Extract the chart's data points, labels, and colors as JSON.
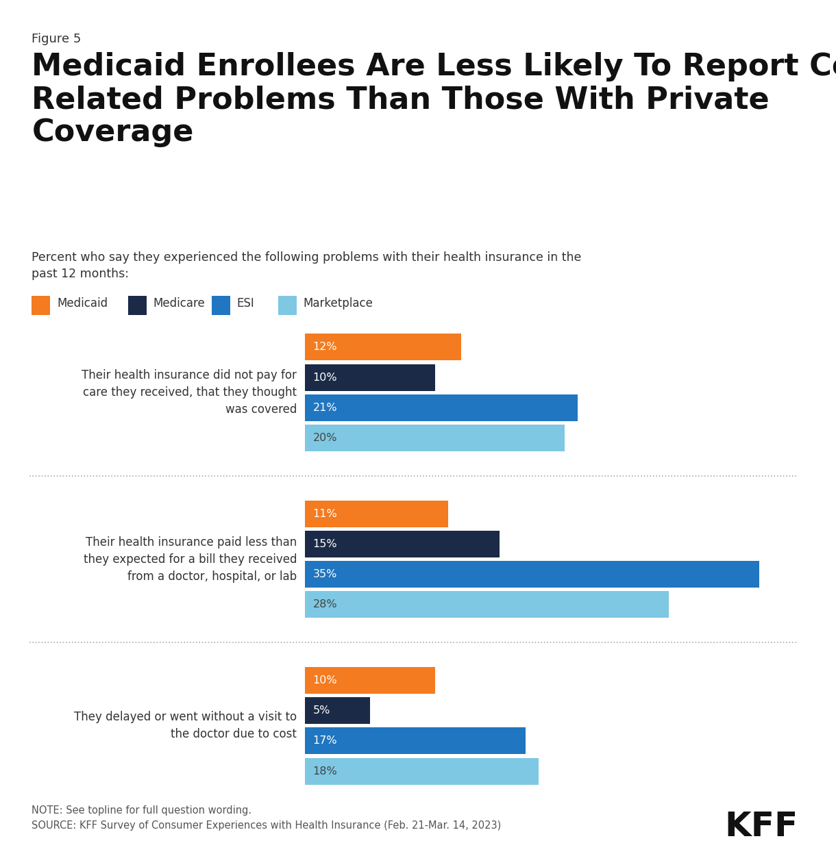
{
  "figure_label": "Figure 5",
  "title_line1": "Medicaid Enrollees Are Less Likely To Report Cost-",
  "title_line2": "Related Problems Than Those With Private",
  "title_line3": "Coverage",
  "subtitle": "Percent who say they experienced the following problems with their health insurance in the\npast 12 months:",
  "legend_labels": [
    "Medicaid",
    "Medicare",
    "ESI",
    "Marketplace"
  ],
  "legend_colors": [
    "#F47B20",
    "#1B2A47",
    "#2076C0",
    "#7EC8E3"
  ],
  "categories": [
    "Their health insurance did not pay for\ncare they received, that they thought\nwas covered",
    "Their health insurance paid less than\nthey expected for a bill they received\nfrom a doctor, hospital, or lab",
    "They delayed or went without a visit to\nthe doctor due to cost"
  ],
  "data": [
    [
      12,
      10,
      21,
      20
    ],
    [
      11,
      15,
      35,
      28
    ],
    [
      10,
      5,
      17,
      18
    ]
  ],
  "bar_colors": [
    "#F47B20",
    "#1B2A47",
    "#2076C0",
    "#7EC8E3"
  ],
  "bar_label_colors": [
    "#FFFFFF",
    "#FFFFFF",
    "#FFFFFF",
    "#444444"
  ],
  "note": "NOTE: See topline for full question wording.\nSOURCE: KFF Survey of Consumer Experiences with Health Insurance (Feb. 21-Mar. 14, 2023)",
  "kff_text": "KFF",
  "background_color": "#FFFFFF",
  "text_color": "#333333",
  "separator_color": "#AAAAAA"
}
